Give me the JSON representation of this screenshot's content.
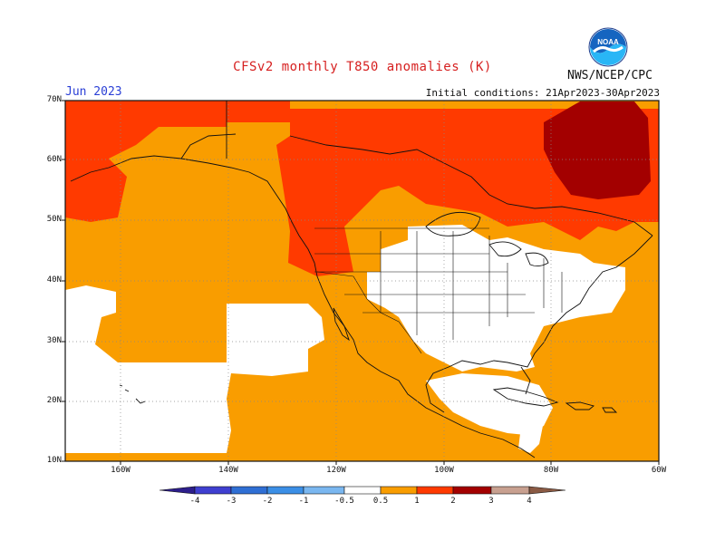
{
  "title": "CFSv2 monthly T850 anomalies (K)",
  "organization": "NWS/NCEP/CPC",
  "valid_month": "Jun 2023",
  "initial_conditions": "Initial conditions: 21Apr2023-30Apr2023",
  "logo_text": "NOAA",
  "latitude_labels": [
    "70N",
    "60N",
    "50N",
    "40N",
    "30N",
    "20N",
    "10N"
  ],
  "longitude_labels": [
    "160W",
    "140W",
    "120W",
    "100W",
    "80W",
    "60W"
  ],
  "colorbar": {
    "labels": [
      "-4",
      "-3",
      "-2",
      "-1",
      "-0.5",
      "0.5",
      "1",
      "2",
      "3",
      "4"
    ],
    "colors": [
      "#2d1e8c",
      "#3f3fd0",
      "#2f6fd4",
      "#3b8fe6",
      "#7ab7f0",
      "#ffffff",
      "#f99d00",
      "#ff3a00",
      "#a30000",
      "#c8a090",
      "#8a5a44"
    ]
  },
  "anomaly_colors": {
    "near_normal": "#ffffff",
    "c_0_5_to_1": "#f99d00",
    "c_1_to_2": "#ff3a00",
    "c_2_to_3": "#a30000"
  }
}
